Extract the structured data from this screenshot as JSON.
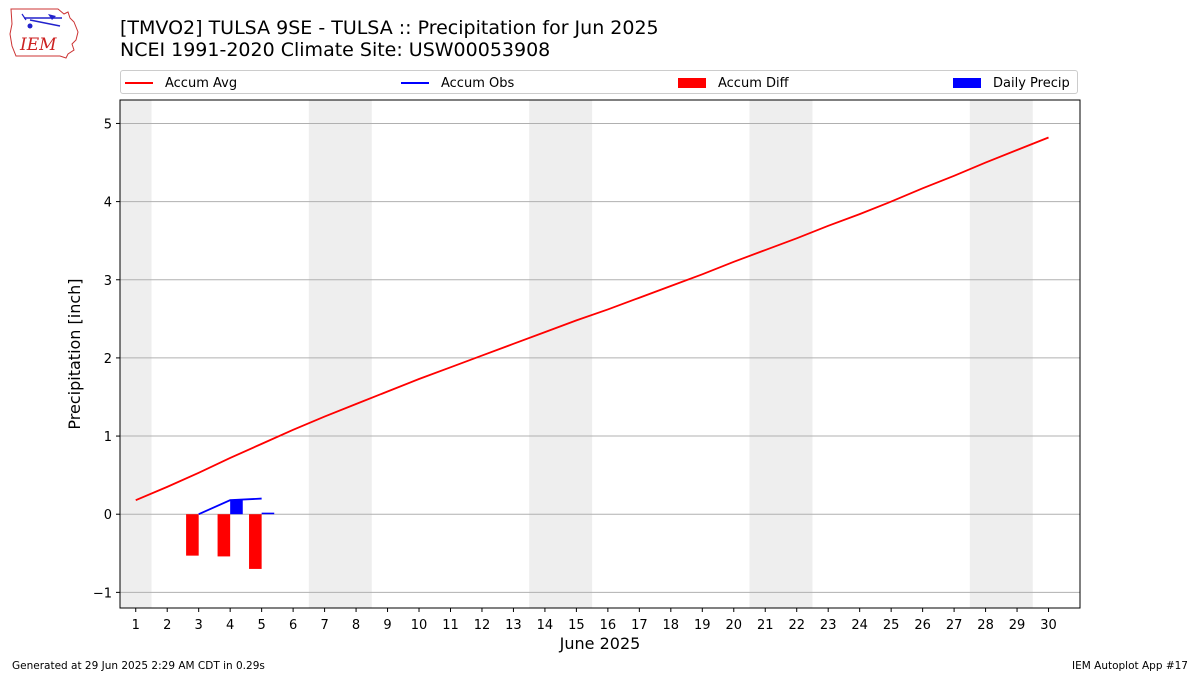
{
  "header": {
    "title_line1": "[TMVO2] TULSA 9SE - TULSA :: Precipitation for Jun 2025",
    "title_line2": "NCEI 1991-2020 Climate Site: USW00053908",
    "logo_text": "IEM"
  },
  "legend": [
    {
      "label": "Accum Avg",
      "kind": "line",
      "color": "#ff0000"
    },
    {
      "label": "Accum Obs",
      "kind": "line",
      "color": "#0000ff"
    },
    {
      "label": "Accum Diff",
      "kind": "box",
      "color": "#ff0000"
    },
    {
      "label": "Daily Precip",
      "kind": "box",
      "color": "#0000ff"
    }
  ],
  "footer": {
    "generated": "Generated at 29 Jun 2025 2:29 AM CDT in 0.29s",
    "app": "IEM Autoplot App #17"
  },
  "chart_data": {
    "type": "line",
    "xlabel": "June 2025",
    "ylabel": "Precipitation [inch]",
    "xlim": [
      0.5,
      31.0
    ],
    "ylim": [
      -1.2,
      5.3
    ],
    "x_ticks": [
      1,
      2,
      3,
      4,
      5,
      6,
      7,
      8,
      9,
      10,
      11,
      12,
      13,
      14,
      15,
      16,
      17,
      18,
      19,
      20,
      21,
      22,
      23,
      24,
      25,
      26,
      27,
      28,
      29,
      30
    ],
    "y_ticks": [
      -1,
      0,
      1,
      2,
      3,
      4,
      5
    ],
    "grid": "y",
    "weekend_shading": [
      [
        0.5,
        1.5
      ],
      [
        6.5,
        8.5
      ],
      [
        13.5,
        15.5
      ],
      [
        20.5,
        22.5
      ],
      [
        27.5,
        29.5
      ]
    ],
    "accum_avg": {
      "x": [
        1,
        2,
        3,
        4,
        5,
        6,
        7,
        8,
        9,
        10,
        11,
        12,
        13,
        14,
        15,
        16,
        17,
        18,
        19,
        20,
        21,
        22,
        23,
        24,
        25,
        26,
        27,
        28,
        29,
        30
      ],
      "y": [
        0.18,
        0.35,
        0.53,
        0.72,
        0.9,
        1.08,
        1.25,
        1.41,
        1.57,
        1.73,
        1.88,
        2.03,
        2.18,
        2.33,
        2.48,
        2.62,
        2.77,
        2.92,
        3.07,
        3.23,
        3.38,
        3.53,
        3.69,
        3.84,
        4.0,
        4.17,
        4.33,
        4.5,
        4.66,
        4.82
      ]
    },
    "accum_obs": {
      "x": [
        3,
        4,
        5
      ],
      "y": [
        0.0,
        0.18,
        0.2
      ]
    },
    "accum_diff": {
      "x": [
        2.8,
        3.8,
        4.8
      ],
      "y": [
        -0.53,
        -0.54,
        -0.7
      ]
    },
    "daily_precip": {
      "x": [
        4.2,
        5.2
      ],
      "y": [
        0.18,
        0.02
      ]
    }
  }
}
